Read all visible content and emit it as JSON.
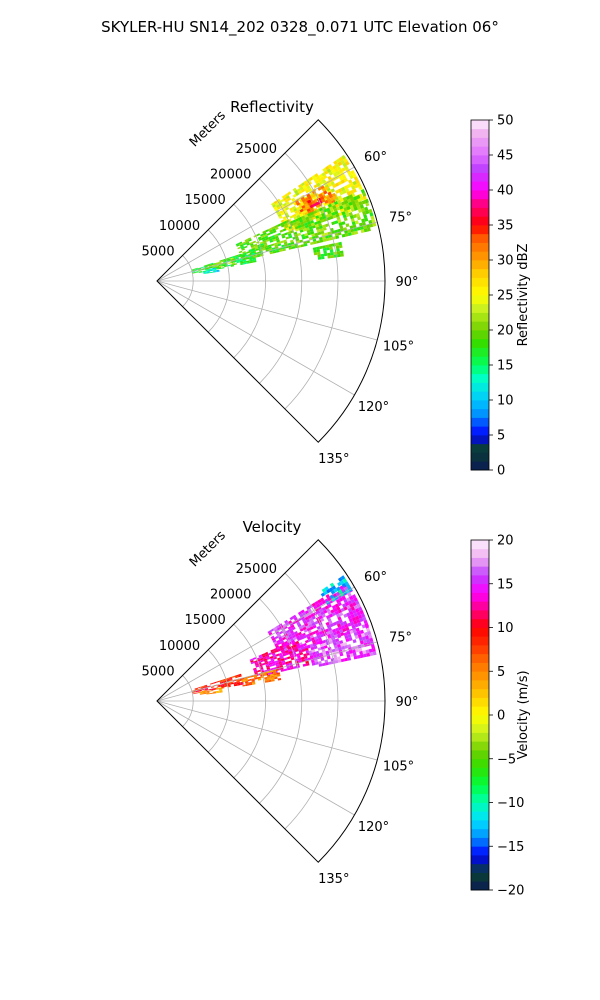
{
  "figure": {
    "title": "SKYLER-HU  SN14_202  0328_0.071 UTC Elevation 06°"
  },
  "chart_data": [
    {
      "type": "heatmap",
      "subtype": "polar-sector-radar",
      "title": "Reflectivity",
      "radial_label": "Meters",
      "radial_ticks": [
        5000,
        10000,
        15000,
        20000,
        25000
      ],
      "radial_tick_labels": [
        "5000",
        "10000",
        "15000",
        "20000",
        "25000"
      ],
      "rmax": 31500,
      "azimuth_range_deg": [
        45,
        135
      ],
      "azimuth_ticks": [
        60,
        75,
        90,
        105,
        120,
        135
      ],
      "azimuth_tick_labels": [
        "60°",
        "75°",
        "90°",
        "105°",
        "120°",
        "135°"
      ],
      "grid": true,
      "colorbar": {
        "label": "Reflectivity dBZ",
        "range": [
          0,
          50
        ],
        "ticks": [
          0,
          5,
          10,
          15,
          20,
          25,
          30,
          35,
          40,
          45,
          50
        ],
        "tick_labels": [
          "0",
          "5",
          "10",
          "15",
          "20",
          "25",
          "30",
          "35",
          "40",
          "45",
          "50"
        ],
        "stops": [
          [
            0,
            "#0a1a55"
          ],
          [
            3,
            "#0a4030"
          ],
          [
            5,
            "#0000ff"
          ],
          [
            8,
            "#0090ff"
          ],
          [
            10,
            "#00c8ff"
          ],
          [
            13,
            "#00ffcc"
          ],
          [
            15,
            "#00ff60"
          ],
          [
            18,
            "#30e000"
          ],
          [
            20,
            "#70d000"
          ],
          [
            23,
            "#c8f020"
          ],
          [
            25,
            "#ffff00"
          ],
          [
            28,
            "#ffd000"
          ],
          [
            30,
            "#ffa000"
          ],
          [
            33,
            "#ff6000"
          ],
          [
            35,
            "#ff0000"
          ],
          [
            38,
            "#ff0080"
          ],
          [
            40,
            "#ff00ff"
          ],
          [
            43,
            "#c040ff"
          ],
          [
            45,
            "#e070ff"
          ],
          [
            48,
            "#f0b0f0"
          ],
          [
            50,
            "#fff0ff"
          ]
        ]
      },
      "echo_regions": [
        {
          "az_min": 56,
          "az_max": 70,
          "r_min": 19000,
          "r_max": 31000,
          "value": 25
        },
        {
          "az_min": 60,
          "az_max": 66,
          "r_min": 22000,
          "r_max": 27000,
          "value": 31
        },
        {
          "az_min": 62,
          "az_max": 64,
          "r_min": 23500,
          "r_max": 25500,
          "value": 35
        },
        {
          "az_min": 66,
          "az_max": 76,
          "r_min": 20000,
          "r_max": 31000,
          "value": 20
        },
        {
          "az_min": 65,
          "az_max": 76,
          "r_min": 12000,
          "r_max": 20000,
          "value": 19
        },
        {
          "az_min": 72,
          "az_max": 79,
          "r_min": 5000,
          "r_max": 14000,
          "value": 17
        },
        {
          "az_min": 73,
          "az_max": 77,
          "r_min": 7000,
          "r_max": 11000,
          "value": 20
        },
        {
          "az_min": 77,
          "az_max": 81,
          "r_min": 6500,
          "r_max": 8500,
          "value": 12
        },
        {
          "az_min": 78,
          "az_max": 82,
          "r_min": 22000,
          "r_max": 26000,
          "value": 19
        }
      ]
    },
    {
      "type": "heatmap",
      "subtype": "polar-sector-radar",
      "title": "Velocity",
      "radial_label": "Meters",
      "radial_ticks": [
        5000,
        10000,
        15000,
        20000,
        25000
      ],
      "radial_tick_labels": [
        "5000",
        "10000",
        "15000",
        "20000",
        "25000"
      ],
      "rmax": 31500,
      "azimuth_range_deg": [
        45,
        135
      ],
      "azimuth_ticks": [
        60,
        75,
        90,
        105,
        120,
        135
      ],
      "azimuth_tick_labels": [
        "60°",
        "75°",
        "90°",
        "105°",
        "120°",
        "135°"
      ],
      "grid": true,
      "colorbar": {
        "label": "Velocity (m/s)",
        "range": [
          -20,
          20
        ],
        "ticks": [
          -20,
          -15,
          -10,
          -5,
          0,
          5,
          10,
          15,
          20
        ],
        "tick_labels": [
          "−20",
          "−15",
          "−10",
          "−5",
          "0",
          "5",
          "10",
          "15",
          "20"
        ],
        "stops": [
          [
            -20,
            "#0a1a55"
          ],
          [
            -18,
            "#0a4030"
          ],
          [
            -16,
            "#0000ff"
          ],
          [
            -14,
            "#0090ff"
          ],
          [
            -12,
            "#00e0ff"
          ],
          [
            -10,
            "#00ffb0"
          ],
          [
            -8,
            "#00ff40"
          ],
          [
            -6,
            "#30e000"
          ],
          [
            -4,
            "#70d000"
          ],
          [
            -2,
            "#c8f020"
          ],
          [
            0,
            "#ffff00"
          ],
          [
            2,
            "#ffd000"
          ],
          [
            4,
            "#ffa000"
          ],
          [
            6,
            "#ff7000"
          ],
          [
            8,
            "#ff3000"
          ],
          [
            10,
            "#ff0000"
          ],
          [
            12,
            "#ff0080"
          ],
          [
            14,
            "#ff00ff"
          ],
          [
            16,
            "#c040ff"
          ],
          [
            18,
            "#f0b0f0"
          ],
          [
            20,
            "#fff0ff"
          ]
        ]
      },
      "echo_regions": [
        {
          "az_min": 58,
          "az_max": 70,
          "r_min": 18000,
          "r_max": 31000,
          "value": 15
        },
        {
          "az_min": 56,
          "az_max": 60,
          "r_min": 27000,
          "r_max": 31000,
          "value": -12
        },
        {
          "az_min": 66,
          "az_max": 76,
          "r_min": 14000,
          "r_max": 22000,
          "value": 13
        },
        {
          "az_min": 70,
          "az_max": 78,
          "r_min": 22000,
          "r_max": 31000,
          "value": 16
        },
        {
          "az_min": 72,
          "az_max": 79,
          "r_min": 5000,
          "r_max": 12000,
          "value": 9
        },
        {
          "az_min": 75,
          "az_max": 80,
          "r_min": 12000,
          "r_max": 17000,
          "value": 6
        },
        {
          "az_min": 78,
          "az_max": 82,
          "r_min": 6000,
          "r_max": 9000,
          "value": 4
        }
      ]
    }
  ]
}
